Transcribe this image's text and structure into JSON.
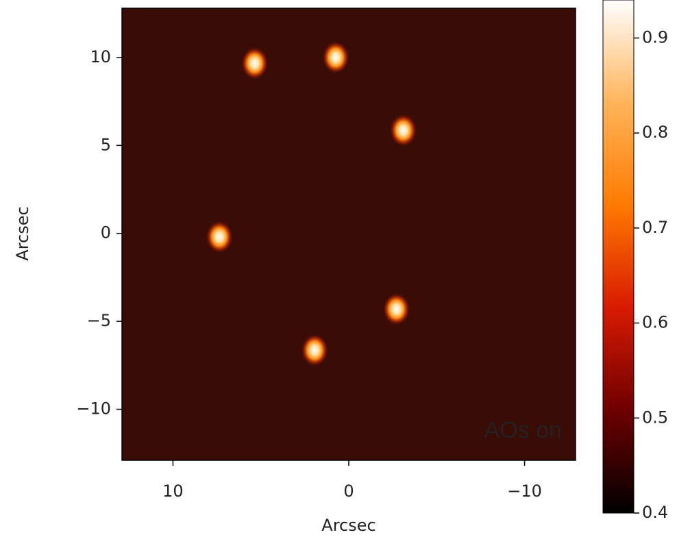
{
  "chart_data": {
    "type": "image",
    "background": "#3a0c06",
    "xlabel": "Arcsec",
    "ylabel": "Arcsec",
    "annotation": "AOs on",
    "annotation_color": "#ffc000",
    "xlim": [
      12.9,
      -12.9
    ],
    "ylim": [
      -12.9,
      12.8
    ],
    "xticks": [
      10,
      0,
      {
        "value": -10,
        "label": "−10"
      }
    ],
    "yticks": [
      {
        "value": -10,
        "label": "−10"
      },
      {
        "value": -5,
        "label": "−5"
      },
      0,
      5,
      10
    ],
    "x": [
      5.35,
      0.74,
      -3.1,
      7.36,
      -2.71,
      1.94
    ],
    "y": [
      9.67,
      10.0,
      5.86,
      -0.2,
      -4.31,
      -6.64
    ],
    "colorbar": {
      "lim": [
        0.4,
        0.94
      ],
      "ticks": [
        0.4,
        0.5,
        0.6,
        0.7,
        0.8,
        0.9
      ],
      "colors": [
        "#000000",
        "#6e0000",
        "#d81a00",
        "#ff7a00",
        "#ffb45a",
        "#ffffff"
      ]
    }
  }
}
